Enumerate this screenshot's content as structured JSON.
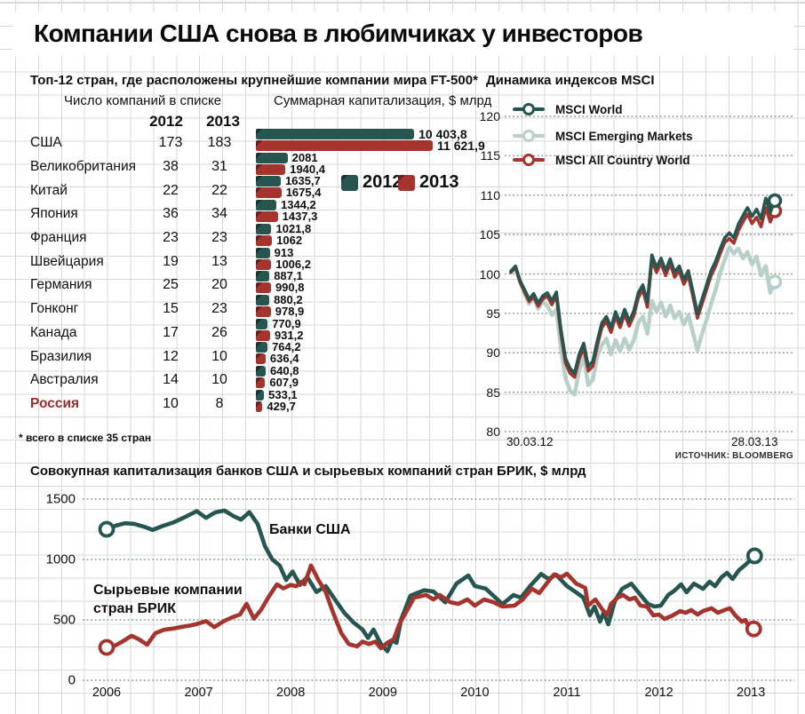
{
  "page": {
    "title": "Компании США снова в любимчиках у инвесторов"
  },
  "colors": {
    "teal": "#275550",
    "red": "#a5342f",
    "light_teal": "#b9d0ca",
    "highlight_text": "#9d2b30",
    "grid_dotted": "#8f9494",
    "text": "#101010"
  },
  "chart_data": [
    {
      "type": "bar",
      "title": "Топ-12 стран, где расположены крупнейшие компании мира FT-500*",
      "footnote": "* всего в списке 35 стран",
      "columns": {
        "counts": "Число компаний в списке",
        "caps": "Суммарная капитализация, $ млрд"
      },
      "years": [
        "2012",
        "2013"
      ],
      "categories": [
        "США",
        "Великобритания",
        "Китай",
        "Япония",
        "Франция",
        "Швейцария",
        "Германия",
        "Гонконг",
        "Канада",
        "Бразилия",
        "Австралия",
        "Россия"
      ],
      "highlight": "Россия",
      "xmax": 11621.9,
      "series": [
        {
          "name": "2012",
          "color": "#275550",
          "counts": [
            173,
            38,
            22,
            36,
            23,
            19,
            25,
            15,
            17,
            12,
            14,
            10
          ],
          "caps": [
            10403.8,
            2081,
            1635.7,
            1344.2,
            1021.8,
            913,
            887.1,
            880.2,
            770.9,
            764.2,
            640.8,
            533.1
          ],
          "cap_labels": [
            "10 403,8",
            "2081",
            "1635,7",
            "1344,2",
            "1021,8",
            "913",
            "887,1",
            "880,2",
            "770,9",
            "764,2",
            "640,8",
            "533,1"
          ]
        },
        {
          "name": "2013",
          "color": "#a5342f",
          "counts": [
            183,
            31,
            22,
            34,
            23,
            13,
            20,
            23,
            26,
            10,
            10,
            8
          ],
          "caps": [
            11621.9,
            1940.4,
            1675.4,
            1437.3,
            1062,
            1006.2,
            990.8,
            978.9,
            931.2,
            636.4,
            607.9,
            429.7
          ],
          "cap_labels": [
            "11 621,9",
            "1940,4",
            "1675,4",
            "1437,3",
            "1062",
            "1006,2",
            "990,8",
            "978,9",
            "931,2",
            "636,4",
            "607,9",
            "429,7"
          ]
        }
      ]
    },
    {
      "type": "line",
      "title": "Динамика индексов MSCI",
      "ylim": [
        80,
        120
      ],
      "yticks": [
        120,
        115,
        110,
        105,
        100,
        95,
        90,
        85,
        80
      ],
      "x_range_labels": [
        "30.03.12",
        "28.03.13"
      ],
      "source": "ИСТОЧНИК: BLOOMBERG",
      "grid": "dotted-horizontal",
      "legend_position": "top-left",
      "series": [
        {
          "name": "MSCI World",
          "color": "#275550",
          "values": [
            100.3,
            101.0,
            99.2,
            98.0,
            96.8,
            97.5,
            96.3,
            97.2,
            97.6,
            96.6,
            97.7,
            93.0,
            89.3,
            88.0,
            87.4,
            89.8,
            91.2,
            88.3,
            88.9,
            91.5,
            93.8,
            94.6,
            93.2,
            95.2,
            93.8,
            95.5,
            94.0,
            95.3,
            97.6,
            98.6,
            96.4,
            102.4,
            100.8,
            102.0,
            100.4,
            101.9,
            100.2,
            101.0,
            99.3,
            100.4,
            97.8,
            95.0,
            96.8,
            98.6,
            100.4,
            101.6,
            103.2,
            104.6,
            105.2,
            104.6,
            106.3,
            107.4,
            108.4,
            107.3,
            108.2,
            107.0,
            109.6,
            107.8,
            109.3
          ]
        },
        {
          "name": "MSCI Emerging Markets",
          "color": "#b9d0ca",
          "values": [
            100.4,
            100.9,
            99.0,
            97.5,
            96.2,
            96.9,
            95.6,
            96.5,
            96.0,
            94.8,
            95.5,
            90.5,
            86.8,
            85.2,
            84.7,
            87.8,
            89.4,
            85.9,
            86.6,
            89.6,
            91.0,
            91.8,
            89.8,
            91.6,
            90.2,
            91.8,
            90.4,
            91.6,
            93.8,
            94.6,
            92.4,
            96.6,
            95.2,
            96.4,
            94.6,
            96.0,
            94.4,
            95.2,
            93.6,
            94.8,
            92.6,
            90.3,
            92.4,
            94.2,
            96.2,
            98.0,
            100.2,
            101.8,
            103.4,
            102.6,
            103.2,
            102.0,
            102.8,
            101.2,
            102.2,
            99.8,
            101.0,
            97.6,
            99.0
          ]
        },
        {
          "name": "MSCI All Country World",
          "color": "#a5342f",
          "values": [
            100.2,
            100.8,
            99.0,
            97.7,
            96.5,
            97.1,
            95.9,
            96.8,
            97.2,
            96.1,
            97.2,
            92.4,
            88.7,
            87.4,
            86.9,
            89.2,
            90.6,
            87.7,
            88.3,
            90.9,
            93.2,
            94.0,
            92.6,
            94.6,
            93.2,
            94.9,
            93.4,
            94.7,
            97.0,
            98.0,
            95.8,
            101.8,
            100.2,
            101.4,
            99.8,
            101.3,
            99.6,
            100.4,
            98.7,
            99.8,
            97.2,
            94.4,
            96.2,
            98.0,
            99.8,
            101.0,
            102.6,
            104.0,
            104.5,
            103.9,
            105.5,
            106.6,
            107.6,
            106.4,
            107.2,
            106.0,
            108.4,
            106.6,
            108.0
          ]
        }
      ]
    },
    {
      "type": "line",
      "title": "Совокупная капитализация банков США и сырьевых компаний стран БРИК, $ млрд",
      "ylim": [
        0,
        1500
      ],
      "yticks": [
        1500,
        1000,
        500,
        0
      ],
      "xticks": [
        2006,
        2007,
        2008,
        2009,
        2010,
        2011,
        2012,
        2013
      ],
      "grid": "dotted-horizontal",
      "series": [
        {
          "name": "Банки США",
          "color": "#275550",
          "points": [
            [
              2006.0,
              1250
            ],
            [
              2006.1,
              1280
            ],
            [
              2006.2,
              1300
            ],
            [
              2006.3,
              1295
            ],
            [
              2006.42,
              1268
            ],
            [
              2006.5,
              1245
            ],
            [
              2006.6,
              1275
            ],
            [
              2006.72,
              1305
            ],
            [
              2006.82,
              1340
            ],
            [
              2006.9,
              1370
            ],
            [
              2006.98,
              1400
            ],
            [
              2007.08,
              1345
            ],
            [
              2007.18,
              1390
            ],
            [
              2007.28,
              1405
            ],
            [
              2007.38,
              1358
            ],
            [
              2007.46,
              1330
            ],
            [
              2007.55,
              1392
            ],
            [
              2007.64,
              1295
            ],
            [
              2007.72,
              1110
            ],
            [
              2007.8,
              1000
            ],
            [
              2007.88,
              950
            ],
            [
              2007.95,
              830
            ],
            [
              2008.02,
              900
            ],
            [
              2008.1,
              790
            ],
            [
              2008.18,
              855
            ],
            [
              2008.28,
              730
            ],
            [
              2008.38,
              780
            ],
            [
              2008.48,
              670
            ],
            [
              2008.58,
              560
            ],
            [
              2008.68,
              480
            ],
            [
              2008.78,
              420
            ],
            [
              2008.84,
              350
            ],
            [
              2008.9,
              420
            ],
            [
              2008.98,
              300
            ],
            [
              2009.05,
              240
            ],
            [
              2009.1,
              330
            ],
            [
              2009.15,
              310
            ],
            [
              2009.2,
              505
            ],
            [
              2009.3,
              700
            ],
            [
              2009.45,
              745
            ],
            [
              2009.55,
              735
            ],
            [
              2009.68,
              645
            ],
            [
              2009.8,
              800
            ],
            [
              2009.93,
              868
            ],
            [
              2010.0,
              780
            ],
            [
              2010.12,
              758
            ],
            [
              2010.3,
              630
            ],
            [
              2010.42,
              706
            ],
            [
              2010.5,
              684
            ],
            [
              2010.6,
              780
            ],
            [
              2010.72,
              880
            ],
            [
              2010.8,
              838
            ],
            [
              2010.88,
              875
            ],
            [
              2011.0,
              780
            ],
            [
              2011.1,
              728
            ],
            [
              2011.18,
              684
            ],
            [
              2011.25,
              537
            ],
            [
              2011.3,
              610
            ],
            [
              2011.36,
              485
            ],
            [
              2011.4,
              560
            ],
            [
              2011.45,
              463
            ],
            [
              2011.52,
              654
            ],
            [
              2011.6,
              757
            ],
            [
              2011.7,
              800
            ],
            [
              2011.8,
              706
            ],
            [
              2011.88,
              632
            ],
            [
              2011.95,
              610
            ],
            [
              2012.02,
              618
            ],
            [
              2012.1,
              706
            ],
            [
              2012.17,
              743
            ],
            [
              2012.24,
              794
            ],
            [
              2012.3,
              728
            ],
            [
              2012.38,
              800
            ],
            [
              2012.48,
              757
            ],
            [
              2012.55,
              816
            ],
            [
              2012.61,
              779
            ],
            [
              2012.68,
              853
            ],
            [
              2012.74,
              890
            ],
            [
              2012.8,
              838
            ],
            [
              2012.87,
              912
            ],
            [
              2012.93,
              949
            ],
            [
              2012.98,
              985
            ],
            [
              2013.04,
              1030
            ]
          ]
        },
        {
          "name": "Сырьевые компании стран БРИК",
          "color": "#a5342f",
          "points": [
            [
              2006.0,
              272
            ],
            [
              2006.08,
              282
            ],
            [
              2006.17,
              320
            ],
            [
              2006.27,
              368
            ],
            [
              2006.35,
              340
            ],
            [
              2006.44,
              295
            ],
            [
              2006.53,
              390
            ],
            [
              2006.62,
              418
            ],
            [
              2006.72,
              428
            ],
            [
              2006.82,
              442
            ],
            [
              2006.92,
              455
            ],
            [
              2007.0,
              470
            ],
            [
              2007.08,
              490
            ],
            [
              2007.17,
              440
            ],
            [
              2007.27,
              488
            ],
            [
              2007.36,
              520
            ],
            [
              2007.45,
              545
            ],
            [
              2007.52,
              632
            ],
            [
              2007.6,
              510
            ],
            [
              2007.68,
              585
            ],
            [
              2007.76,
              690
            ],
            [
              2007.85,
              794
            ],
            [
              2007.92,
              760
            ],
            [
              2008.0,
              790
            ],
            [
              2008.06,
              779
            ],
            [
              2008.12,
              816
            ],
            [
              2008.15,
              794
            ],
            [
              2008.22,
              950
            ],
            [
              2008.3,
              830
            ],
            [
              2008.38,
              730
            ],
            [
              2008.46,
              560
            ],
            [
              2008.55,
              390
            ],
            [
              2008.63,
              300
            ],
            [
              2008.72,
              280
            ],
            [
              2008.78,
              320
            ],
            [
              2008.85,
              300
            ],
            [
              2008.92,
              320
            ],
            [
              2008.98,
              265
            ],
            [
              2009.05,
              310
            ],
            [
              2009.12,
              340
            ],
            [
              2009.18,
              463
            ],
            [
              2009.34,
              684
            ],
            [
              2009.47,
              706
            ],
            [
              2009.55,
              669
            ],
            [
              2009.62,
              706
            ],
            [
              2009.73,
              647
            ],
            [
              2009.82,
              632
            ],
            [
              2009.92,
              669
            ],
            [
              2010.0,
              618
            ],
            [
              2010.1,
              669
            ],
            [
              2010.2,
              647
            ],
            [
              2010.3,
              610
            ],
            [
              2010.43,
              618
            ],
            [
              2010.52,
              669
            ],
            [
              2010.62,
              757
            ],
            [
              2010.7,
              721
            ],
            [
              2010.78,
              801
            ],
            [
              2010.86,
              875
            ],
            [
              2010.94,
              853
            ],
            [
              2011.0,
              882
            ],
            [
              2011.1,
              801
            ],
            [
              2011.2,
              764
            ],
            [
              2011.23,
              618
            ],
            [
              2011.31,
              669
            ],
            [
              2011.39,
              581
            ],
            [
              2011.44,
              544
            ],
            [
              2011.48,
              632
            ],
            [
              2011.55,
              684
            ],
            [
              2011.61,
              706
            ],
            [
              2011.68,
              669
            ],
            [
              2011.74,
              684
            ],
            [
              2011.8,
              618
            ],
            [
              2011.87,
              610
            ],
            [
              2011.94,
              537
            ],
            [
              2012.0,
              544
            ],
            [
              2012.06,
              507
            ],
            [
              2012.15,
              537
            ],
            [
              2012.23,
              573
            ],
            [
              2012.29,
              559
            ],
            [
              2012.35,
              581
            ],
            [
              2012.42,
              544
            ],
            [
              2012.48,
              573
            ],
            [
              2012.57,
              596
            ],
            [
              2012.64,
              559
            ],
            [
              2012.71,
              581
            ],
            [
              2012.77,
              596
            ],
            [
              2012.83,
              537
            ],
            [
              2012.9,
              485
            ],
            [
              2012.94,
              500
            ],
            [
              2012.98,
              434
            ],
            [
              2013.03,
              425
            ]
          ]
        }
      ]
    }
  ]
}
